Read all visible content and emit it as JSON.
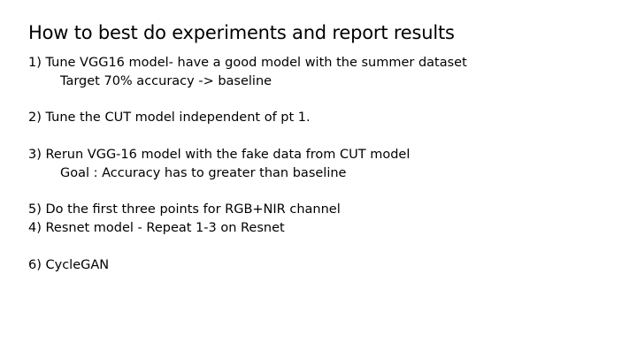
{
  "slide": {
    "title": "How to best do experiments and report results",
    "lines": [
      "1) Tune VGG16 model- have a good model with the summer dataset",
      "Target 70% accuracy    -> baseline",
      "",
      "2) Tune the CUT model independent of pt 1.",
      "",
      "3) Rerun VGG-16 model with the fake data from CUT model",
      "Goal : Accuracy has to greater than baseline",
      "",
      "5) Do the first three points for RGB+NIR channel",
      "4) Resnet model  - Repeat 1-3 on Resnet",
      "",
      "6) CycleGAN"
    ]
  }
}
